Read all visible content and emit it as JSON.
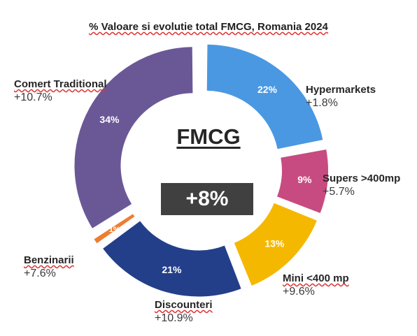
{
  "title": "% Valoare si evolutie total FMCG, Romania 2024",
  "center": {
    "label": "FMCG",
    "total_growth": "+8%"
  },
  "chart_data": {
    "type": "pie",
    "style": "donut, exploded segments",
    "title": "% Valoare si evolutie total FMCG, Romania 2024",
    "slices": [
      {
        "name": "Hypermarkets",
        "value": 22,
        "label": "22%",
        "growth": "+1.8%",
        "color": "#4a98e2"
      },
      {
        "name": "Supers >400mp",
        "value": 9,
        "label": "9%",
        "growth": "+5.7%",
        "color": "#c74b80"
      },
      {
        "name": "Mini <400 mp",
        "value": 13,
        "label": "13%",
        "growth": "+9.6%",
        "color": "#f5b800"
      },
      {
        "name": "Discounteri",
        "value": 21,
        "label": "21%",
        "growth": "+10.9%",
        "color": "#233f8a"
      },
      {
        "name": "Benzinarii",
        "value": 1,
        "label": "1%",
        "growth": "+7.6%",
        "color": "#ee7d31"
      },
      {
        "name": "Comert Traditional",
        "value": 34,
        "label": "34%",
        "growth": "+10.7%",
        "color": "#6a5896"
      }
    ]
  }
}
